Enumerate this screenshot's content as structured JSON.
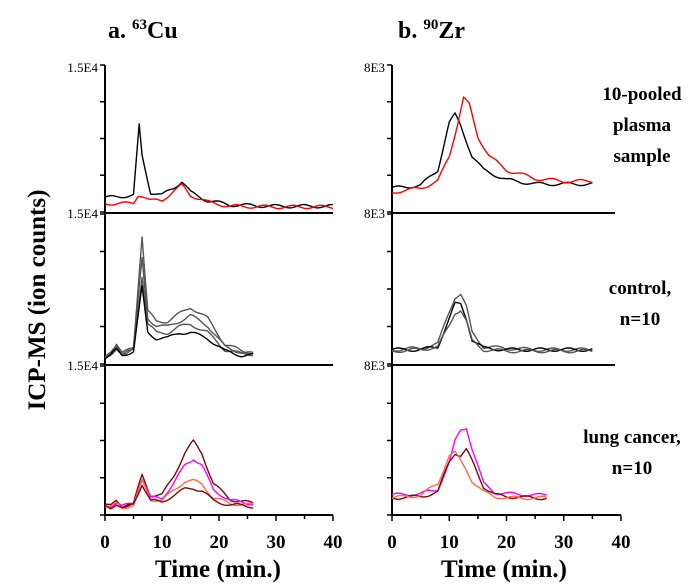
{
  "chart_data": [
    {
      "type": "line",
      "panel": "a",
      "title_prefix": "a. ",
      "title_sup": "63",
      "title_element": "Cu",
      "xlabel": "Time (min.)",
      "ylabel": "ICP-MS (ion counts)",
      "xlim": [
        0,
        40
      ],
      "x_ticks": [
        "0",
        "10",
        "20",
        "30",
        "40"
      ],
      "y_tick_labels": [
        "1.5E4",
        "1.5E4",
        "1.5E4"
      ],
      "grid": false,
      "colors": {
        "black": "#000000",
        "red": "#ff0000",
        "gray": "#555555",
        "maroon": "#7a0a0a",
        "magenta": "#ff00ff",
        "salmon": "#ff6a4a"
      },
      "rows": [
        {
          "annotation_lines": [
            "10-pooled",
            "plasma",
            "sample"
          ],
          "series": [
            {
              "color": "black",
              "x": [
                0,
                5,
                6,
                6.5,
                8,
                10,
                12,
                13.5,
                15,
                18,
                22,
                30,
                40
              ],
              "y": [
                0.08,
                0.1,
                0.6,
                0.38,
                0.12,
                0.1,
                0.15,
                0.2,
                0.12,
                0.06,
                0.03,
                0.02,
                0.02
              ]
            },
            {
              "color": "red",
              "x": [
                0,
                5,
                5.8,
                6.5,
                8,
                10,
                12,
                13.5,
                15,
                18,
                22,
                30,
                40
              ],
              "y": [
                0.04,
                0.04,
                0.1,
                0.1,
                0.06,
                0.06,
                0.13,
                0.17,
                0.1,
                0.05,
                0.02,
                0.015,
                0.015
              ]
            }
          ]
        },
        {
          "annotation_lines": [
            "control,",
            "n=10"
          ],
          "series": [
            {
              "color": "gray",
              "x": [
                0,
                1,
                2,
                3,
                5,
                6.5,
                7.5,
                9,
                11,
                13,
                15,
                18,
                21,
                24,
                26
              ],
              "y": [
                0.03,
                0.06,
                0.12,
                0.05,
                0.1,
                0.88,
                0.35,
                0.28,
                0.28,
                0.33,
                0.38,
                0.3,
                0.12,
                0.07,
                0.06
              ]
            },
            {
              "color": "gray",
              "x": [
                0,
                1,
                2,
                3,
                5,
                6.5,
                7.5,
                9,
                11,
                13,
                15,
                18,
                21,
                24,
                26
              ],
              "y": [
                0.03,
                0.05,
                0.1,
                0.05,
                0.09,
                0.72,
                0.3,
                0.25,
                0.24,
                0.28,
                0.32,
                0.25,
                0.1,
                0.06,
                0.05
              ]
            },
            {
              "color": "gray",
              "x": [
                0,
                1,
                2,
                3,
                5,
                6.5,
                7.5,
                9,
                11,
                13,
                15,
                18,
                21,
                24,
                26
              ],
              "y": [
                0.02,
                0.05,
                0.09,
                0.04,
                0.08,
                0.6,
                0.26,
                0.2,
                0.2,
                0.24,
                0.26,
                0.2,
                0.08,
                0.05,
                0.05
              ]
            },
            {
              "color": "black",
              "x": [
                0,
                1,
                2,
                3,
                5,
                6.5,
                7.5,
                9,
                11,
                13,
                15,
                18,
                21,
                24,
                26
              ],
              "y": [
                0.02,
                0.04,
                0.08,
                0.04,
                0.07,
                0.52,
                0.2,
                0.16,
                0.16,
                0.2,
                0.2,
                0.16,
                0.07,
                0.04,
                0.04
              ]
            }
          ]
        },
        {
          "annotation_lines": [
            "lung cancer,",
            "n=10"
          ],
          "series": [
            {
              "color": "maroon",
              "x": [
                0,
                1,
                2,
                3,
                5,
                6.5,
                8,
                10,
                12,
                14,
                15.5,
                17,
                19,
                22,
                26
              ],
              "y": [
                0.05,
                0.04,
                0.08,
                0.04,
                0.06,
                0.26,
                0.12,
                0.12,
                0.25,
                0.42,
                0.5,
                0.42,
                0.2,
                0.09,
                0.06
              ]
            },
            {
              "color": "magenta",
              "x": [
                0,
                1,
                2,
                3,
                5,
                6.5,
                8,
                10,
                12,
                14,
                15.5,
                17,
                19,
                22,
                26
              ],
              "y": [
                0.05,
                0.04,
                0.07,
                0.04,
                0.06,
                0.24,
                0.1,
                0.1,
                0.2,
                0.33,
                0.38,
                0.33,
                0.16,
                0.08,
                0.06
              ]
            },
            {
              "color": "salmon",
              "x": [
                0,
                1,
                2,
                3,
                5,
                6.5,
                8,
                10,
                12,
                14,
                15.5,
                17,
                19,
                22,
                26
              ],
              "y": [
                0.04,
                0.03,
                0.06,
                0.03,
                0.05,
                0.22,
                0.09,
                0.08,
                0.15,
                0.22,
                0.22,
                0.2,
                0.1,
                0.06,
                0.05
              ]
            },
            {
              "color": "maroon",
              "x": [
                0,
                1,
                2,
                3,
                5,
                6.5,
                8,
                10,
                12,
                14,
                15.5,
                17,
                19,
                22,
                26
              ],
              "y": [
                0.04,
                0.03,
                0.06,
                0.03,
                0.05,
                0.2,
                0.08,
                0.07,
                0.12,
                0.16,
                0.17,
                0.15,
                0.08,
                0.05,
                0.04
              ]
            }
          ]
        }
      ]
    },
    {
      "type": "line",
      "panel": "b",
      "title_prefix": "b. ",
      "title_sup": "90",
      "title_element": "Zr",
      "xlabel": "Time (min.)",
      "xlim": [
        0,
        40
      ],
      "x_ticks": [
        "0",
        "10",
        "20",
        "30",
        "40"
      ],
      "y_tick_labels": [
        "8E3",
        "8E3",
        "8E3"
      ],
      "grid": false,
      "rows": [
        {
          "series": [
            {
              "color": "black",
              "x": [
                0,
                5,
                8,
                10,
                11,
                12,
                14,
                16,
                20,
                25,
                30,
                35
              ],
              "y": [
                0.15,
                0.17,
                0.28,
                0.62,
                0.68,
                0.6,
                0.38,
                0.28,
                0.21,
                0.18,
                0.18,
                0.18
              ]
            },
            {
              "color": "red",
              "x": [
                0,
                5,
                8,
                10,
                11.5,
                12.5,
                13.5,
                15,
                17,
                20,
                25,
                30,
                35
              ],
              "y": [
                0.12,
                0.15,
                0.2,
                0.38,
                0.62,
                0.8,
                0.75,
                0.52,
                0.38,
                0.28,
                0.22,
                0.2,
                0.2
              ]
            }
          ]
        },
        {
          "series": [
            {
              "color": "gray",
              "x": [
                0,
                5,
                8,
                10,
                11,
                12,
                13,
                14,
                16,
                20,
                25,
                30,
                35
              ],
              "y": [
                0.08,
                0.09,
                0.12,
                0.35,
                0.45,
                0.47,
                0.38,
                0.2,
                0.1,
                0.09,
                0.08,
                0.08,
                0.08
              ]
            },
            {
              "color": "black",
              "x": [
                0,
                5,
                8,
                10,
                11,
                12,
                13,
                14,
                16,
                20,
                25,
                30,
                35
              ],
              "y": [
                0.08,
                0.08,
                0.1,
                0.3,
                0.4,
                0.4,
                0.3,
                0.15,
                0.09,
                0.08,
                0.08,
                0.08,
                0.08
              ]
            },
            {
              "color": "gray",
              "x": [
                0,
                5,
                8,
                10,
                11,
                12,
                13,
                14,
                16,
                20,
                25,
                30,
                35
              ],
              "y": [
                0.07,
                0.08,
                0.1,
                0.25,
                0.34,
                0.36,
                0.28,
                0.14,
                0.08,
                0.07,
                0.07,
                0.07,
                0.07
              ]
            }
          ]
        },
        {
          "series": [
            {
              "color": "magenta",
              "x": [
                0,
                5,
                8,
                10,
                11,
                12,
                13,
                14,
                16,
                18,
                20,
                25,
                27
              ],
              "y": [
                0.12,
                0.13,
                0.16,
                0.35,
                0.5,
                0.58,
                0.6,
                0.45,
                0.2,
                0.14,
                0.13,
                0.12,
                0.12
              ]
            },
            {
              "color": "maroon",
              "x": [
                0,
                5,
                8,
                10,
                11,
                12,
                13,
                14,
                16,
                18,
                20,
                25,
                27
              ],
              "y": [
                0.1,
                0.11,
                0.14,
                0.36,
                0.42,
                0.4,
                0.44,
                0.36,
                0.18,
                0.12,
                0.11,
                0.1,
                0.1
              ]
            },
            {
              "color": "salmon",
              "x": [
                0,
                5,
                8,
                10,
                11,
                12,
                13,
                14,
                16,
                18,
                20,
                25,
                27
              ],
              "y": [
                0.1,
                0.12,
                0.2,
                0.4,
                0.42,
                0.36,
                0.3,
                0.22,
                0.14,
                0.11,
                0.1,
                0.1,
                0.1
              ]
            }
          ]
        }
      ]
    }
  ]
}
